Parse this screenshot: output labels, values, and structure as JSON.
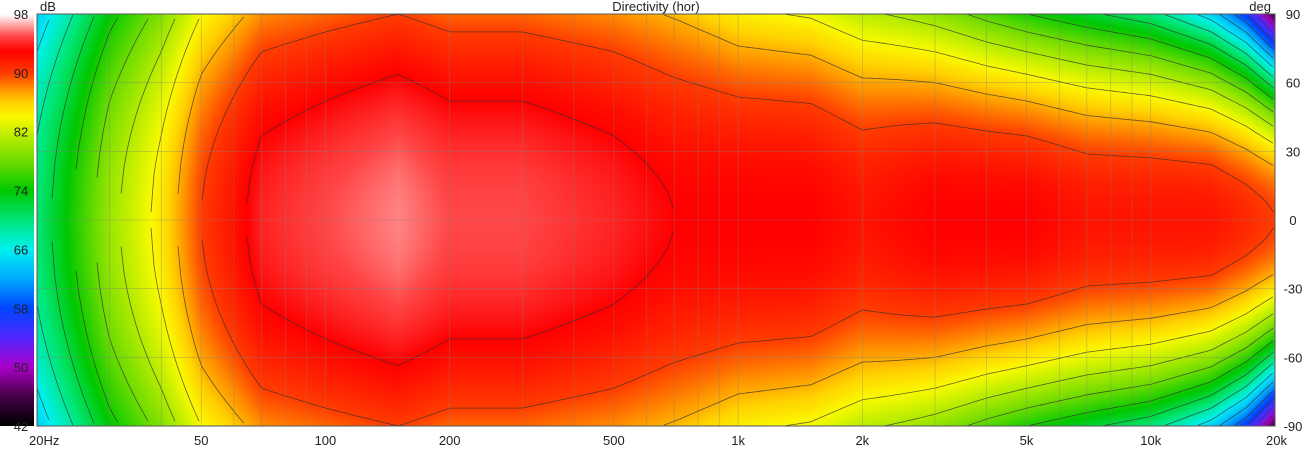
{
  "chart_data": {
    "type": "heatmap",
    "title": "Directivity (hor)",
    "colorbar": {
      "unit": "dB",
      "min": 42,
      "max": 98,
      "ticks": [
        98,
        90,
        82,
        74,
        66,
        58,
        50,
        42
      ]
    },
    "x_axis": {
      "scale": "log",
      "min": 20,
      "max": 20000,
      "ticks": [
        {
          "value": 20,
          "label": "20Hz"
        },
        {
          "value": 50,
          "label": "50"
        },
        {
          "value": 100,
          "label": "100"
        },
        {
          "value": 200,
          "label": "200"
        },
        {
          "value": 500,
          "label": "500"
        },
        {
          "value": 1000,
          "label": "1k"
        },
        {
          "value": 2000,
          "label": "2k"
        },
        {
          "value": 5000,
          "label": "5k"
        },
        {
          "value": 10000,
          "label": "10k"
        },
        {
          "value": 20000,
          "label": "20k"
        }
      ]
    },
    "y_axis": {
      "unit": "deg",
      "min": -90,
      "max": 90,
      "ticks": [
        90,
        60,
        30,
        0,
        -30,
        -60,
        -90
      ]
    },
    "grid": true,
    "frequencies": [
      20,
      30,
      40,
      50,
      70,
      100,
      150,
      200,
      300,
      500,
      700,
      1000,
      1500,
      2000,
      3000,
      4000,
      5000,
      7000,
      10000,
      14000,
      17000,
      20000
    ],
    "axis_levels_db": [
      70,
      80,
      85,
      90,
      94,
      95,
      96,
      95,
      95,
      94,
      93,
      93,
      93,
      92,
      93,
      93,
      93,
      92,
      92,
      92,
      91,
      90
    ],
    "halfwidth_6db_deg": [
      90,
      90,
      90,
      90,
      90,
      90,
      90,
      90,
      90,
      90,
      88,
      76,
      72,
      68,
      60,
      55,
      52,
      50,
      47,
      42,
      38,
      33
    ]
  }
}
